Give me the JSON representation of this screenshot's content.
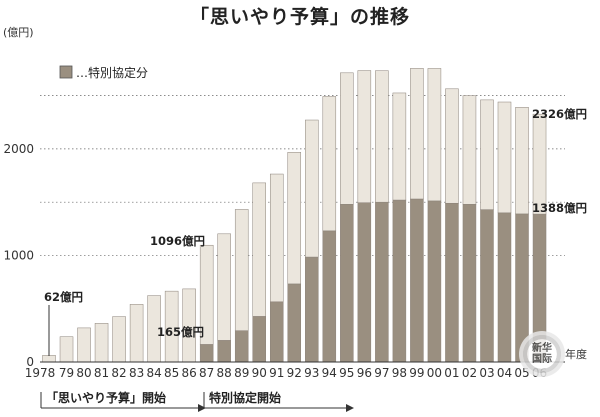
{
  "title": "「思いやり予算」の推移",
  "chart_data": {
    "type": "bar",
    "stacked": true,
    "ylabel": "(億円)",
    "xlabel": "年度",
    "ylim": [
      0,
      2900
    ],
    "yticks": [
      0,
      1000,
      2000
    ],
    "grid_lines": [
      1000,
      1500,
      2000,
      2500
    ],
    "categories": [
      "1978",
      "79",
      "80",
      "81",
      "82",
      "83",
      "84",
      "85",
      "86",
      "87",
      "88",
      "89",
      "90",
      "91",
      "92",
      "93",
      "94",
      "95",
      "96",
      "97",
      "98",
      "99",
      "00",
      "01",
      "02",
      "03",
      "04",
      "05",
      "06"
    ],
    "series": [
      {
        "name": "特別協定分",
        "color": "#9a8f80",
        "values": [
          0,
          0,
          0,
          0,
          0,
          0,
          0,
          0,
          0,
          165,
          203,
          294,
          428,
          565,
          733,
          985,
          1231,
          1480,
          1495,
          1500,
          1520,
          1530,
          1512,
          1490,
          1480,
          1430,
          1400,
          1390,
          1388
        ]
      },
      {
        "name": "",
        "color": "#ebe6dd",
        "values": [
          62,
          237,
          320,
          363,
          426,
          541,
          623,
          665,
          686,
          931,
          1000,
          1138,
          1253,
          1199,
          1235,
          1286,
          1261,
          1234,
          1240,
          1234,
          1005,
          1226,
          1243,
          1074,
          1020,
          1030,
          1040,
          1000,
          938
        ]
      }
    ],
    "totals": [
      62,
      237,
      320,
      363,
      426,
      541,
      623,
      665,
      686,
      1096,
      1203,
      1432,
      1681,
      1764,
      1968,
      2271,
      2492,
      2714,
      2735,
      2734,
      2525,
      2756,
      2755,
      2564,
      2500,
      2460,
      2440,
      2390,
      2326
    ],
    "legend": {
      "label": "…特別協定分",
      "position": "top-left"
    },
    "annotations": {
      "first_year": "62億円",
      "y1987_total": "1096億円",
      "y1987_special": "165億円",
      "last_total": "2326億円",
      "last_special": "1388億円"
    },
    "periods": [
      {
        "label": "「思いやり予算」開始"
      },
      {
        "label": "特別協定開始"
      }
    ]
  },
  "watermark": {
    "line1": "新华",
    "line2": "国际"
  }
}
